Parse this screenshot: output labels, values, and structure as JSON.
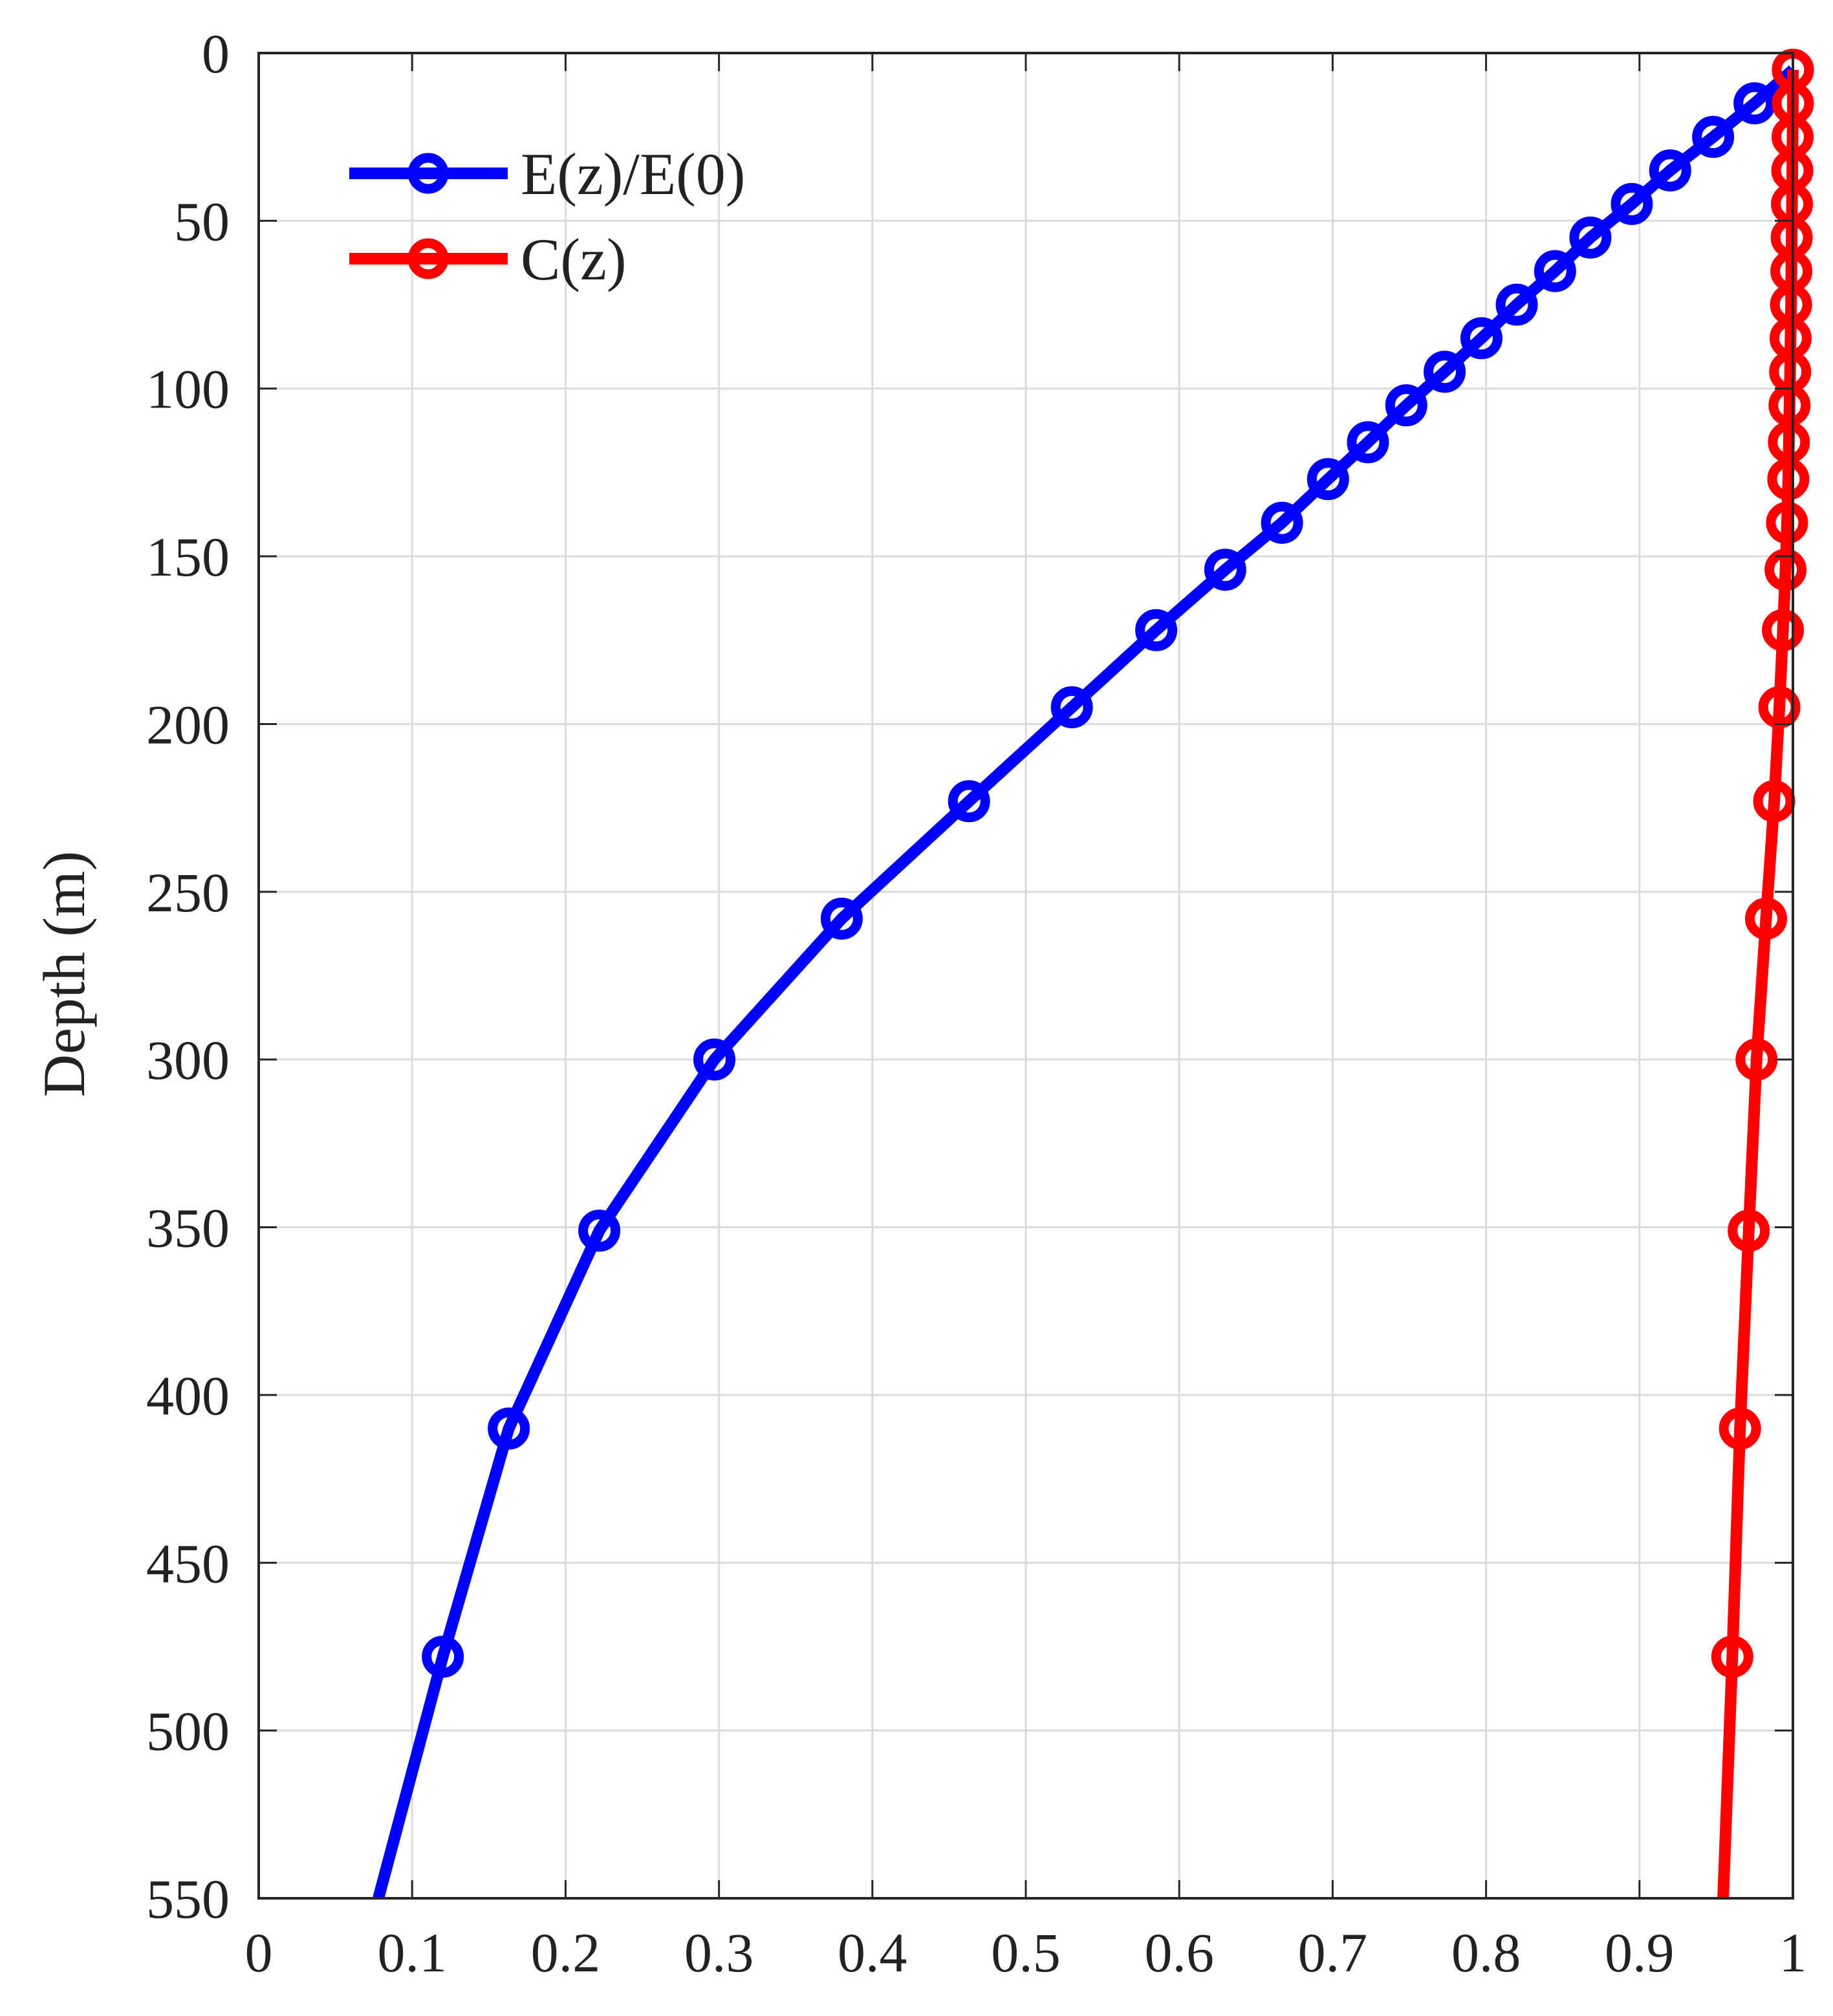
{
  "chart_data": {
    "type": "line",
    "xlabel": "",
    "ylabel": "Depth (m)",
    "xlim": [
      0,
      1
    ],
    "ylim": [
      0,
      550
    ],
    "y_reversed": true,
    "grid": true,
    "legend_placement": "top-left",
    "x_ticks": [
      "0",
      "0.1",
      "0.2",
      "0.3",
      "0.4",
      "0.5",
      "0.6",
      "0.7",
      "0.8",
      "0.9",
      "1"
    ],
    "y_ticks": [
      "0",
      "50",
      "100",
      "150",
      "200",
      "250",
      "300",
      "350",
      "400",
      "450",
      "500",
      "550"
    ],
    "series": [
      {
        "name": "E(z)/E(0)",
        "color": "#0000ff",
        "line_points": [
          [
            1.0,
            5
          ],
          [
            0.975,
            15
          ],
          [
            0.948,
            25
          ],
          [
            0.92,
            35
          ],
          [
            0.895,
            45
          ],
          [
            0.868,
            55
          ],
          [
            0.845,
            65
          ],
          [
            0.82,
            75
          ],
          [
            0.797,
            85
          ],
          [
            0.773,
            95
          ],
          [
            0.748,
            105
          ],
          [
            0.723,
            116
          ],
          [
            0.697,
            127
          ],
          [
            0.667,
            140
          ],
          [
            0.63,
            154
          ],
          [
            0.585,
            172
          ],
          [
            0.53,
            195
          ],
          [
            0.463,
            223
          ],
          [
            0.38,
            258
          ],
          [
            0.297,
            300
          ],
          [
            0.222,
            351
          ],
          [
            0.163,
            410
          ],
          [
            0.12,
            478
          ],
          [
            0.078,
            550
          ]
        ],
        "markers": [
          [
            1.0,
            5
          ],
          [
            0.975,
            15
          ],
          [
            0.948,
            25
          ],
          [
            0.92,
            35
          ],
          [
            0.895,
            45
          ],
          [
            0.868,
            55
          ],
          [
            0.845,
            65
          ],
          [
            0.82,
            75
          ],
          [
            0.797,
            85
          ],
          [
            0.773,
            95
          ],
          [
            0.748,
            105
          ],
          [
            0.723,
            116
          ],
          [
            0.697,
            127
          ],
          [
            0.667,
            140
          ],
          [
            0.63,
            154
          ],
          [
            0.585,
            172
          ],
          [
            0.53,
            195
          ],
          [
            0.463,
            223
          ],
          [
            0.38,
            258
          ],
          [
            0.297,
            300
          ],
          [
            0.222,
            351
          ],
          [
            0.163,
            410
          ],
          [
            0.12,
            478
          ]
        ]
      },
      {
        "name": "C(z)",
        "color": "#ff0000",
        "line_points": [
          [
            1.0,
            5
          ],
          [
            1.0,
            15
          ],
          [
            0.9998,
            25
          ],
          [
            0.9996,
            35
          ],
          [
            0.9994,
            45
          ],
          [
            0.9992,
            55
          ],
          [
            0.999,
            65
          ],
          [
            0.9988,
            75
          ],
          [
            0.9985,
            85
          ],
          [
            0.9982,
            95
          ],
          [
            0.9978,
            105
          ],
          [
            0.9974,
            116
          ],
          [
            0.997,
            127
          ],
          [
            0.9962,
            140
          ],
          [
            0.9952,
            154
          ],
          [
            0.9935,
            172
          ],
          [
            0.9912,
            195
          ],
          [
            0.9878,
            223
          ],
          [
            0.9825,
            258
          ],
          [
            0.9763,
            300
          ],
          [
            0.9712,
            351
          ],
          [
            0.9655,
            410
          ],
          [
            0.9605,
            478
          ],
          [
            0.9545,
            550
          ]
        ],
        "markers": [
          [
            1.0,
            5
          ],
          [
            1.0,
            15
          ],
          [
            0.9998,
            25
          ],
          [
            0.9996,
            35
          ],
          [
            0.9994,
            45
          ],
          [
            0.9992,
            55
          ],
          [
            0.999,
            65
          ],
          [
            0.9988,
            75
          ],
          [
            0.9985,
            85
          ],
          [
            0.9982,
            95
          ],
          [
            0.9978,
            105
          ],
          [
            0.9974,
            116
          ],
          [
            0.997,
            127
          ],
          [
            0.9962,
            140
          ],
          [
            0.9952,
            154
          ],
          [
            0.9935,
            172
          ],
          [
            0.9912,
            195
          ],
          [
            0.9878,
            223
          ],
          [
            0.9825,
            258
          ],
          [
            0.9763,
            300
          ],
          [
            0.9712,
            351
          ],
          [
            0.9655,
            410
          ],
          [
            0.9605,
            478
          ]
        ]
      }
    ]
  }
}
